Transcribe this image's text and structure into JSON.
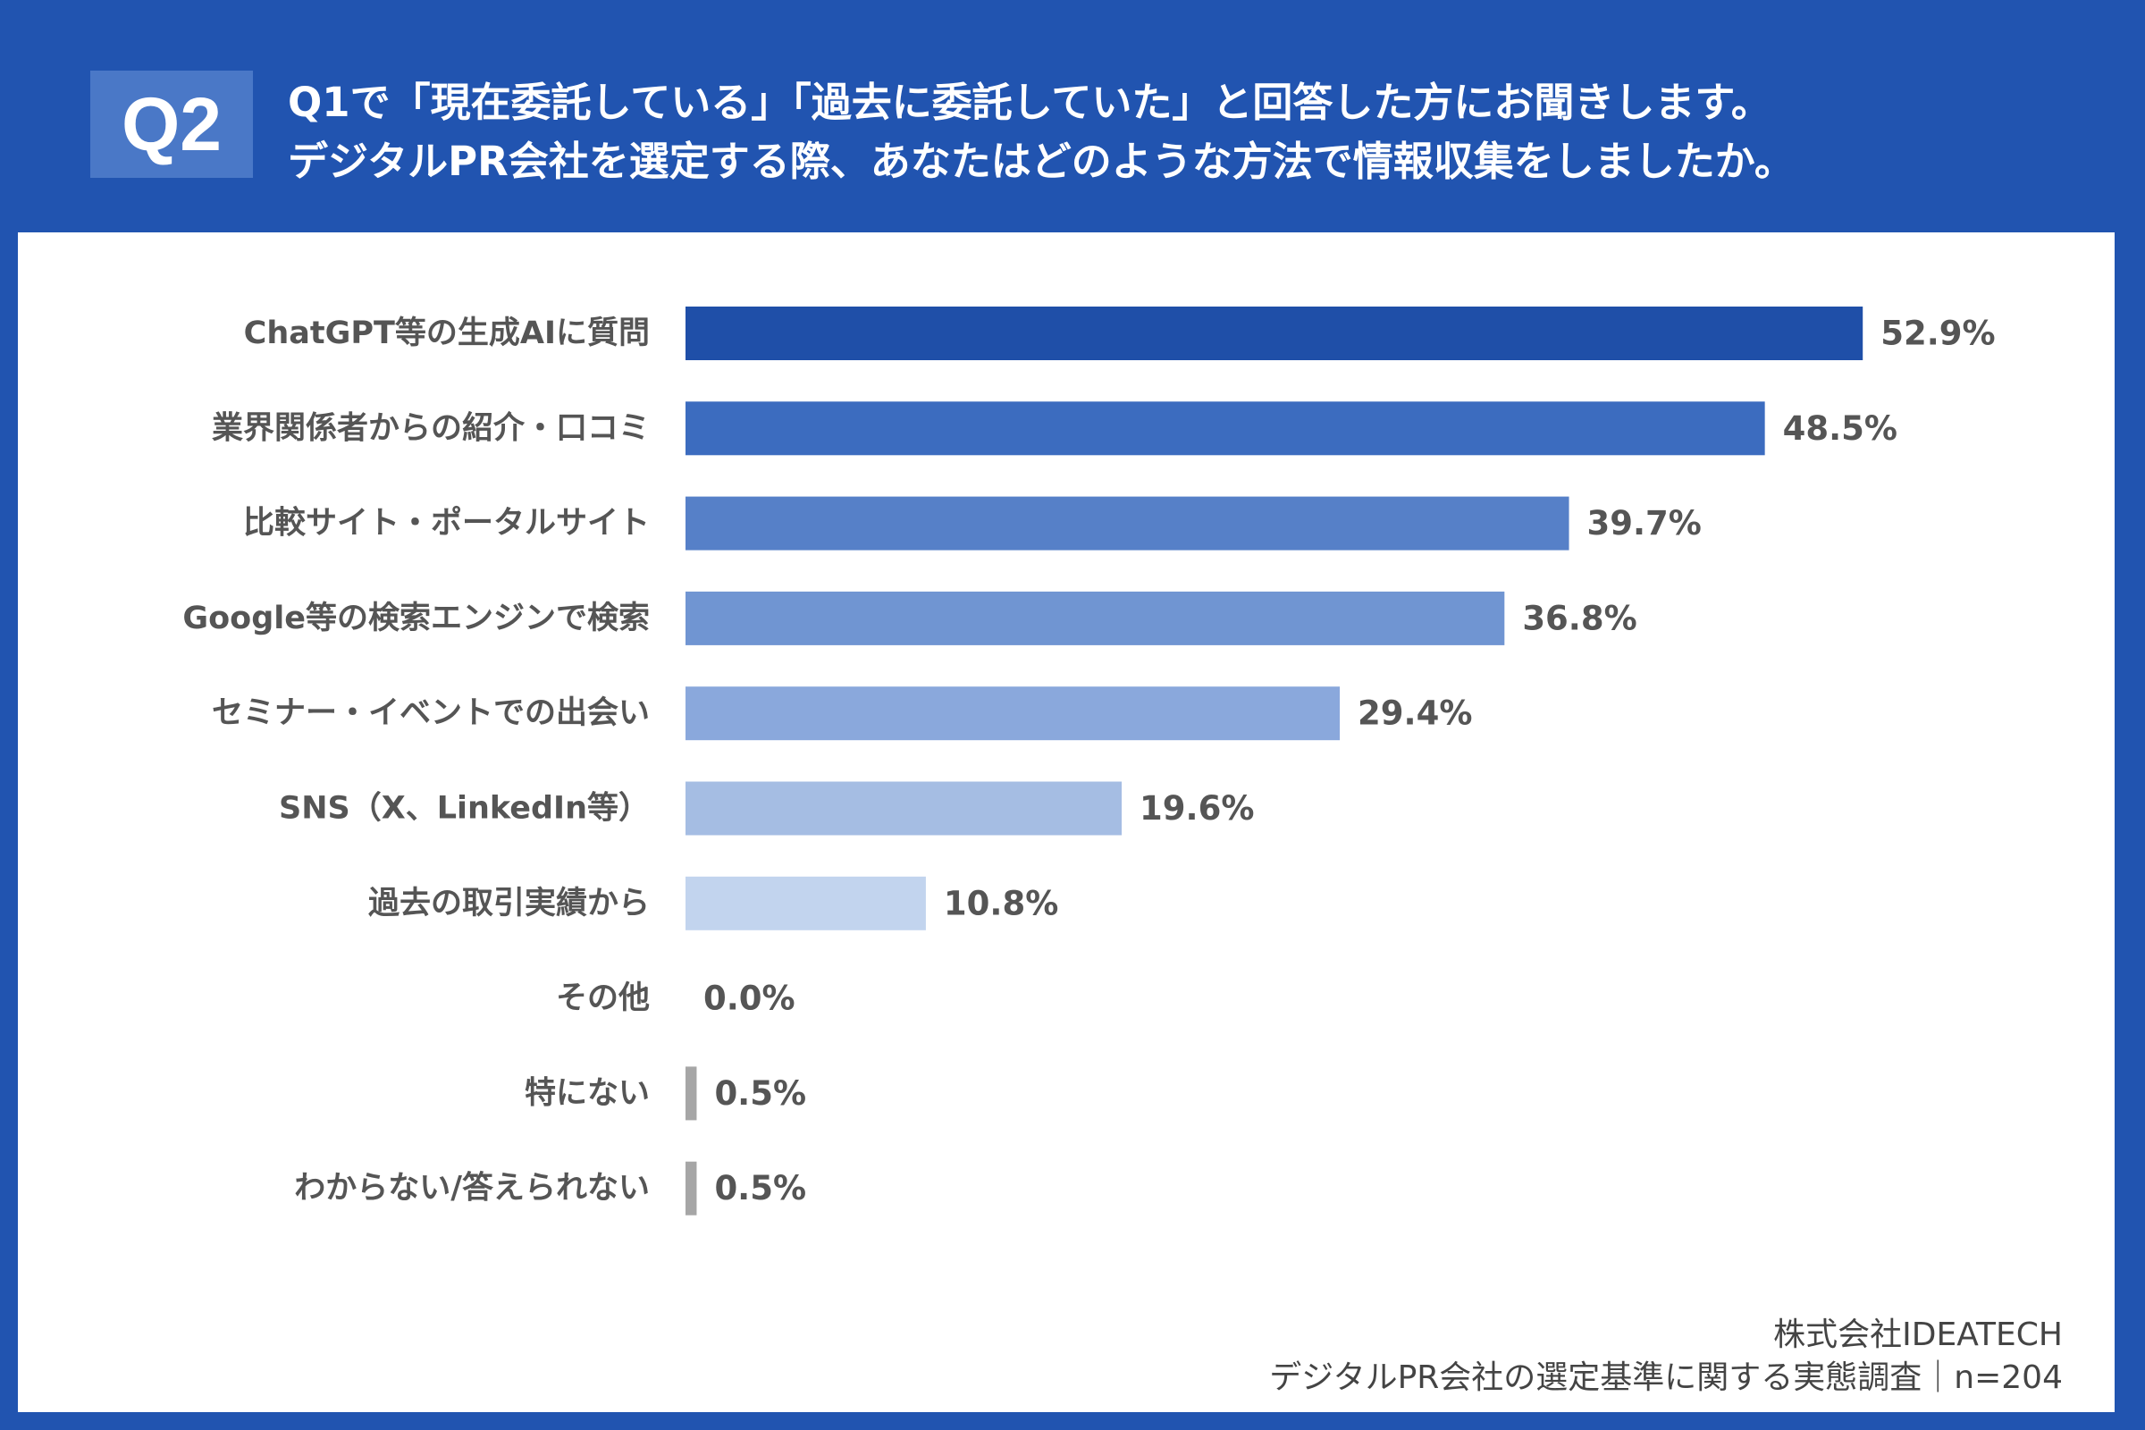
{
  "header": {
    "badge": "Q2",
    "question_line1": "Q1で「現在委託している」「過去に委託していた」と回答した方にお聞きします。",
    "question_line2": "デジタルPR会社を選定する際、あなたはどのような方法で情報収集をしましたか。"
  },
  "footer": {
    "company": "株式会社IDEATECH",
    "survey": "デジタルPR会社の選定基準に関する実態調査｜n=204"
  },
  "colors": {
    "background": "#2154b0",
    "badge": "#4a78c7",
    "gray_bar": "#a6a6a6"
  },
  "chart_data": {
    "type": "bar",
    "orientation": "horizontal",
    "unit": "%",
    "xlim": [
      0,
      60
    ],
    "categories": [
      "ChatGPT等の生成AIに質問",
      "業界関係者からの紹介・口コミ",
      "比較サイト・ポータルサイト",
      "Google等の検索エンジンで検索",
      "セミナー・イベントでの出会い",
      "SNS（X、LinkedIn等）",
      "過去の取引実績から",
      "その他",
      "特にない",
      "わからない/答えられない"
    ],
    "values": [
      52.9,
      48.5,
      39.7,
      36.8,
      29.4,
      19.6,
      10.8,
      0.0,
      0.5,
      0.5
    ],
    "labels": [
      "52.9%",
      "48.5%",
      "39.7%",
      "36.8%",
      "29.4%",
      "19.6%",
      "10.8%",
      "0.0%",
      "0.5%",
      "0.5%"
    ],
    "bar_colors": [
      "#1f4fa8",
      "#3c6cbf",
      "#5680c8",
      "#7095d2",
      "#8aa8dc",
      "#a5bde3",
      "#c2d4ee",
      "#a6a6a6",
      "#a6a6a6",
      "#a6a6a6"
    ]
  }
}
